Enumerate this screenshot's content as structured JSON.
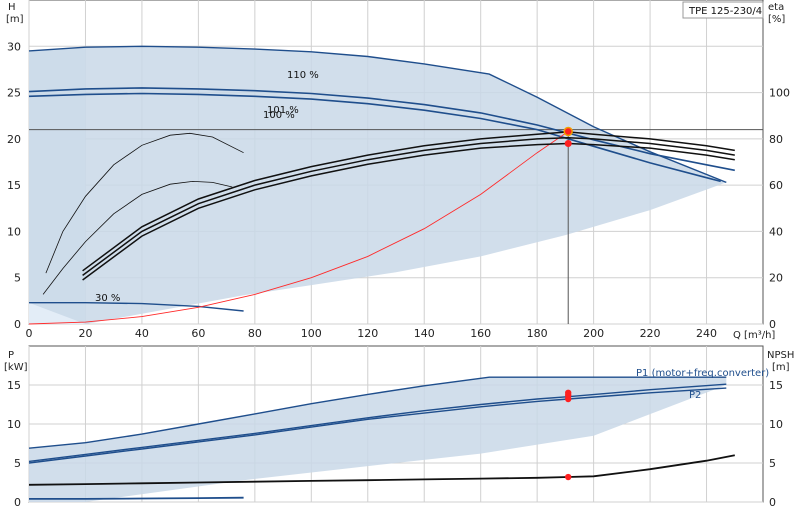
{
  "pump_model": "TPE 125-230/4",
  "chart_data": [
    {
      "type": "line",
      "panel": "head",
      "left_axis_label": "H",
      "left_axis_unit": "[m]",
      "right_axis_label": "eta",
      "right_axis_unit": "[%]",
      "x_axis_label": "Q [m³/h]",
      "xlim": [
        0,
        260
      ],
      "ylim": [
        0,
        35
      ],
      "y2lim": [
        0,
        140
      ],
      "x_ticks": [
        0,
        20,
        40,
        60,
        80,
        100,
        120,
        140,
        160,
        180,
        200,
        220,
        240
      ],
      "y_ticks": [
        0,
        5,
        10,
        15,
        20,
        25,
        30
      ],
      "y2_ticks": [
        0,
        20,
        40,
        60,
        80,
        100
      ],
      "grid": true,
      "colors": {
        "area": "#c9d8e8",
        "area_light": "#e3edf7",
        "curve": "#1f4e8c",
        "system": "#ff2a2a",
        "duty": "#ff2020",
        "duty_ring": "#f0a000",
        "eff": "#111111"
      },
      "series": [
        {
          "name": "110 %",
          "x": [
            0,
            20,
            40,
            60,
            80,
            100,
            120,
            140,
            163,
            180,
            200,
            220,
            247
          ],
          "y": [
            29.5,
            29.9,
            30.0,
            29.9,
            29.7,
            29.4,
            28.9,
            28.1,
            27.0,
            24.5,
            21.3,
            18.6,
            15.3
          ]
        },
        {
          "name": "101 %",
          "x": [
            0,
            20,
            40,
            60,
            80,
            100,
            120,
            140,
            160,
            180,
            200,
            220,
            240,
            250
          ],
          "y": [
            25.1,
            25.4,
            25.5,
            25.4,
            25.2,
            24.9,
            24.4,
            23.7,
            22.8,
            21.5,
            19.9,
            18.4,
            17.2,
            16.6
          ]
        },
        {
          "name": "100 %",
          "x": [
            0,
            20,
            40,
            60,
            80,
            100,
            120,
            140,
            160,
            180,
            200,
            220,
            240,
            245
          ],
          "y": [
            24.6,
            24.8,
            24.9,
            24.8,
            24.6,
            24.3,
            23.8,
            23.1,
            22.2,
            21.0,
            19.2,
            17.4,
            15.8,
            15.4
          ]
        },
        {
          "name": "30 %",
          "x": [
            0,
            20,
            40,
            60,
            76
          ],
          "y": [
            2.3,
            2.3,
            2.2,
            1.9,
            1.4
          ]
        },
        {
          "name": "",
          "x": [
            0,
            20,
            40,
            60,
            80,
            100,
            120,
            140,
            160,
            180,
            191
          ],
          "y": [
            0,
            0.2,
            0.8,
            1.8,
            3.2,
            5.0,
            7.3,
            10.3,
            14.0,
            18.5,
            20.8
          ]
        },
        {
          "name": "",
          "x": [
            6,
            12,
            20,
            30,
            40,
            50,
            57,
            65,
            76
          ],
          "y": [
            5.5,
            10.0,
            13.8,
            17.2,
            19.3,
            20.4,
            20.6,
            20.2,
            18.5
          ]
        },
        {
          "name": "",
          "x": [
            5,
            12,
            20,
            30,
            40,
            50,
            58,
            65,
            72
          ],
          "y": [
            3.2,
            6.0,
            8.9,
            11.9,
            14.0,
            15.1,
            15.4,
            15.3,
            14.8
          ]
        }
      ],
      "eff_curves": [
        {
          "x": [
            19,
            40,
            60,
            80,
            100,
            120,
            140,
            160,
            180,
            191,
            200,
            220,
            240,
            250
          ],
          "y": [
            23,
            42,
            54,
            62,
            68,
            73,
            77,
            80,
            82,
            83,
            82,
            80,
            77,
            75
          ]
        },
        {
          "x": [
            19,
            40,
            60,
            80,
            100,
            120,
            140,
            160,
            180,
            191,
            200,
            220,
            240,
            250
          ],
          "y": [
            21,
            40,
            52,
            60,
            66,
            71,
            75,
            78,
            80,
            80.5,
            80,
            78,
            75,
            73
          ]
        },
        {
          "x": [
            19,
            40,
            60,
            80,
            100,
            120,
            140,
            160,
            180,
            191,
            200,
            220,
            240,
            250
          ],
          "y": [
            19,
            38,
            50,
            58,
            64,
            69,
            73,
            76,
            77.5,
            78,
            77.5,
            76,
            73,
            71
          ]
        }
      ],
      "duty_point": {
        "x": 191,
        "H": 20.8,
        "eta": 78
      },
      "reference_H": 21
    },
    {
      "type": "line",
      "panel": "power",
      "left_axis_label": "P",
      "left_axis_unit": "[kW]",
      "right_axis_label": "NPSH",
      "right_axis_unit": "[m]",
      "xlim": [
        0,
        260
      ],
      "ylim": [
        0,
        20
      ],
      "y_ticks": [
        0,
        5,
        10,
        15
      ],
      "y2_ticks": [
        0,
        5,
        10,
        15
      ],
      "series": [
        {
          "name": "P1 (motor+freq.converter)",
          "x": [
            0,
            20,
            40,
            60,
            80,
            100,
            120,
            140,
            163,
            190,
            220,
            247
          ],
          "y": [
            6.9,
            7.6,
            8.7,
            10.0,
            11.3,
            12.6,
            13.8,
            14.9,
            16.0,
            16.0,
            16.0,
            16.0
          ]
        },
        {
          "name": "P2",
          "x": [
            0,
            20,
            40,
            60,
            80,
            100,
            120,
            140,
            160,
            180,
            191,
            220,
            247
          ],
          "y": [
            5.2,
            6.1,
            7.0,
            7.9,
            8.8,
            9.8,
            10.8,
            11.7,
            12.5,
            13.2,
            13.5,
            14.4,
            15.1
          ]
        },
        {
          "name": "",
          "x": [
            0,
            20,
            40,
            60,
            80,
            100,
            120,
            140,
            160,
            180,
            191,
            220,
            247
          ],
          "y": [
            5.0,
            5.9,
            6.8,
            7.7,
            8.6,
            9.6,
            10.6,
            11.4,
            12.2,
            12.9,
            13.2,
            14.0,
            14.6
          ]
        },
        {
          "name": "",
          "x": [
            0,
            20,
            40,
            60,
            76
          ],
          "y": [
            0.4,
            0.4,
            0.45,
            0.5,
            0.55
          ]
        }
      ],
      "npsh": {
        "x": [
          0,
          20,
          40,
          60,
          80,
          100,
          120,
          140,
          160,
          180,
          191,
          200,
          220,
          240,
          250
        ],
        "y": [
          2.2,
          2.3,
          2.4,
          2.5,
          2.6,
          2.7,
          2.8,
          2.9,
          3.0,
          3.1,
          3.2,
          3.3,
          4.2,
          5.3,
          6.0
        ]
      },
      "duty_points": [
        13.2,
        13.7,
        14.0
      ],
      "npsh_duty": 3.2
    }
  ]
}
